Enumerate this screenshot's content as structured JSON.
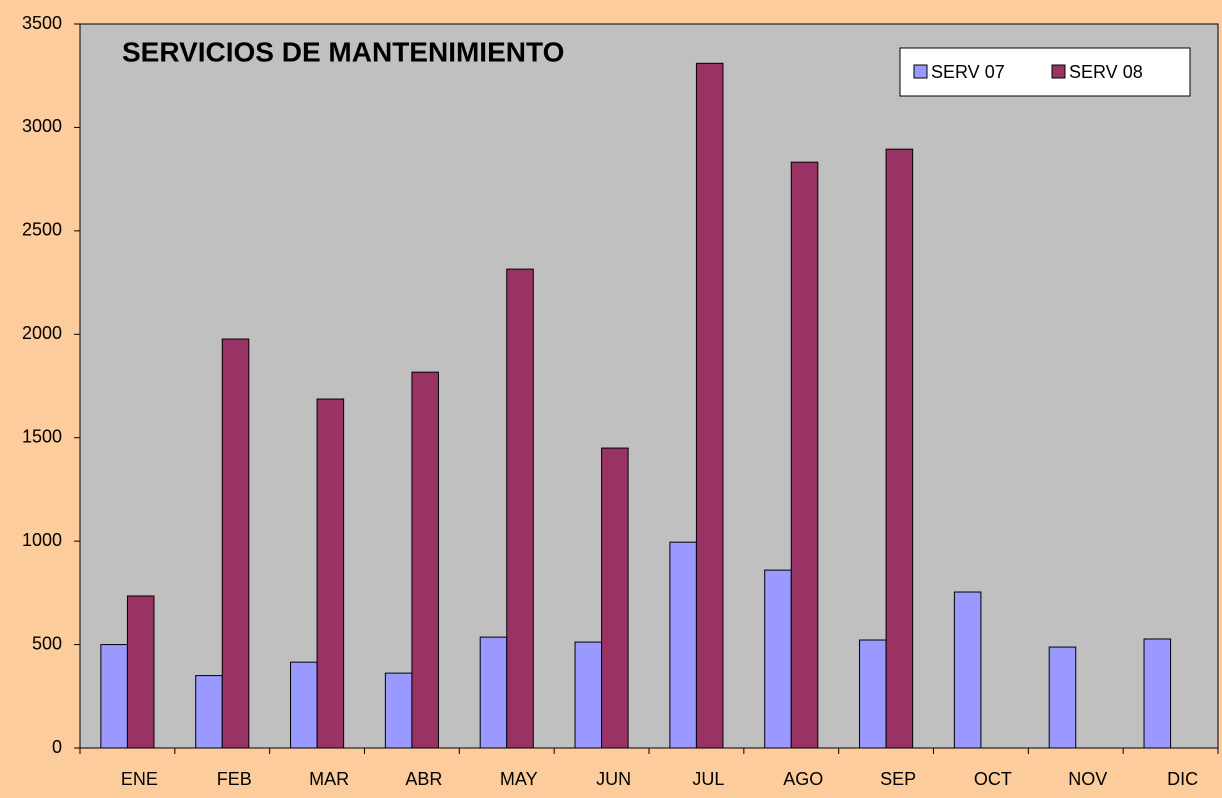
{
  "chart_data": {
    "type": "bar",
    "title": "SERVICIOS DE MANTENIMIENTO",
    "categories": [
      "ENE",
      "FEB",
      "MAR",
      "ABR",
      "MAY",
      "JUN",
      "JUL",
      "AGO",
      "SEP",
      "OCT",
      "NOV",
      "DIC"
    ],
    "series": [
      {
        "name": "SERV 07",
        "color": "#9999ff",
        "values": [
          500,
          350,
          415,
          362,
          536,
          512,
          995,
          860,
          522,
          754,
          488,
          527
        ]
      },
      {
        "name": "SERV 08",
        "color": "#993366",
        "values": [
          735,
          1977,
          1687,
          1817,
          2315,
          1450,
          3310,
          2832,
          2895,
          null,
          null,
          null
        ]
      }
    ],
    "ylim": [
      0,
      3500
    ],
    "yticks": [
      0,
      500,
      1000,
      1500,
      2000,
      2500,
      3000,
      3500
    ],
    "grid": false,
    "legend": "upper right"
  }
}
